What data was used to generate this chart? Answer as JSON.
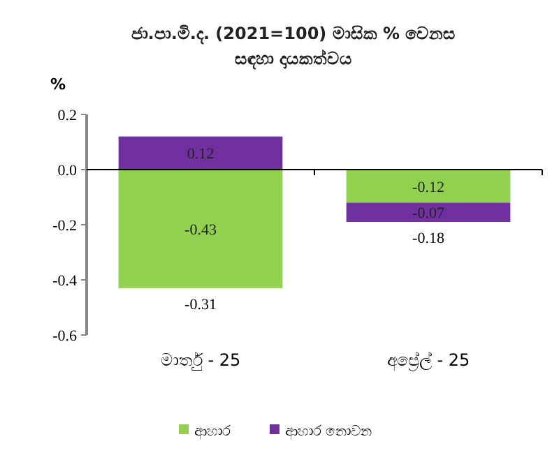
{
  "chart_data": {
    "type": "bar",
    "title": "ජා.පා.මි.ද. (2021=100) මාසික % වෙනස සඳහා දායකත්වය",
    "ylabel": "%",
    "categories": [
      "මාර්තු - 25",
      "අප්‍රේල් - 25"
    ],
    "series": [
      {
        "name": "ආහාර",
        "color": "#92d050",
        "values": [
          -0.43,
          -0.12
        ]
      },
      {
        "name": "ආහාර නොවන",
        "color": "#7030a0",
        "values": [
          0.12,
          -0.07
        ]
      }
    ],
    "stacked": true,
    "ylim": [
      -0.6,
      0.2
    ],
    "yticks": [
      {
        "value": -0.6,
        "label": "-0.6"
      },
      {
        "value": -0.4,
        "label": "-0.4"
      },
      {
        "value": -0.2,
        "label": "-0.2"
      },
      {
        "value": 0,
        "label": "0.0"
      },
      {
        "value": 0.2,
        "label": "0.2"
      }
    ],
    "data_labels": true,
    "totals": [
      "-0.31",
      "-0.18"
    ],
    "legend": "bottom"
  }
}
